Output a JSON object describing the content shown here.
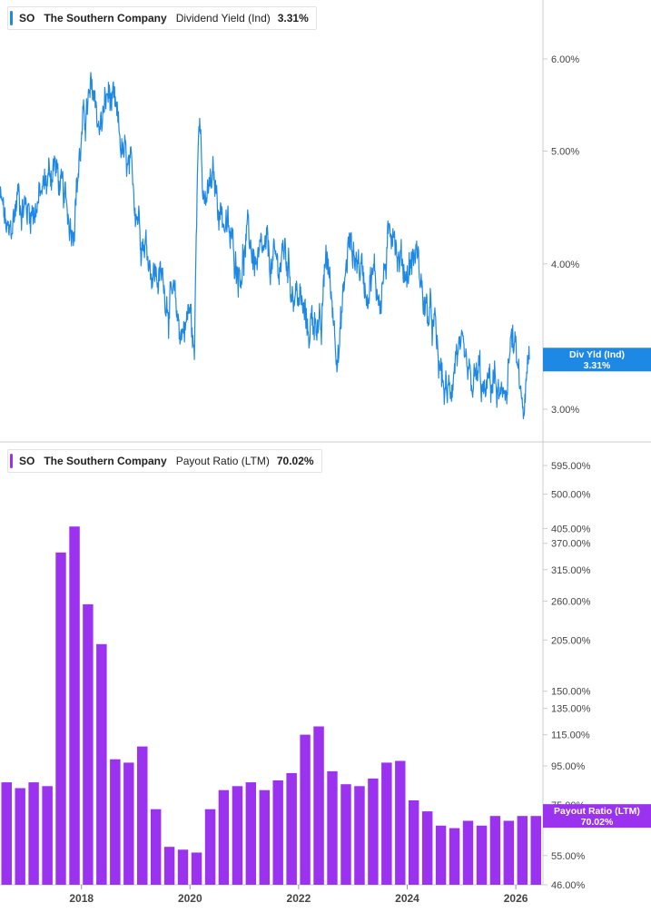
{
  "colors": {
    "yield": "#1e88e5",
    "payout": "#9a32f0",
    "axis": "#cccccc",
    "text": "#555555"
  },
  "top_legend": {
    "ticker": "SO",
    "company": "The Southern Company",
    "metric": "Dividend Yield (Ind)",
    "value": "3.31%"
  },
  "bottom_legend": {
    "ticker": "SO",
    "company": "The Southern Company",
    "metric": "Payout Ratio (LTM)",
    "value": "70.02%"
  },
  "chart_data": [
    {
      "type": "line",
      "series": [
        {
          "name": "Dividend Yield (Ind)"
        }
      ],
      "x_range": [
        "2016-07",
        "2026-07"
      ],
      "y_scale": "log",
      "y_ticks": [
        "6.00%",
        "5.00%",
        "4.00%",
        "3.00%"
      ],
      "y_tick_values": [
        6.0,
        5.0,
        4.0,
        3.0
      ],
      "anchors": [
        [
          "2016-07",
          4.55
        ],
        [
          "2016-09",
          4.15
        ],
        [
          "2016-11",
          4.6
        ],
        [
          "2017-01",
          4.45
        ],
        [
          "2017-04",
          4.55
        ],
        [
          "2017-07",
          4.9
        ],
        [
          "2017-09",
          4.5
        ],
        [
          "2017-11",
          4.35
        ],
        [
          "2018-01",
          5.1
        ],
        [
          "2018-02",
          5.4
        ],
        [
          "2018-04",
          5.6
        ],
        [
          "2018-05",
          5.2
        ],
        [
          "2018-07",
          5.6
        ],
        [
          "2018-09",
          5.2
        ],
        [
          "2018-11",
          4.8
        ],
        [
          "2019-01",
          4.55
        ],
        [
          "2019-03",
          4.2
        ],
        [
          "2019-05",
          3.95
        ],
        [
          "2019-07",
          3.85
        ],
        [
          "2019-09",
          3.7
        ],
        [
          "2019-11",
          3.5
        ],
        [
          "2020-01",
          3.65
        ],
        [
          "2020-02",
          3.3
        ],
        [
          "2020-03",
          5.75
        ],
        [
          "2020-04",
          4.4
        ],
        [
          "2020-06",
          4.7
        ],
        [
          "2020-08",
          4.45
        ],
        [
          "2020-10",
          4.15
        ],
        [
          "2020-12",
          4.0
        ],
        [
          "2021-02",
          4.2
        ],
        [
          "2021-04",
          3.95
        ],
        [
          "2021-06",
          4.05
        ],
        [
          "2021-08",
          3.95
        ],
        [
          "2021-10",
          4.1
        ],
        [
          "2021-12",
          3.8
        ],
        [
          "2022-01",
          3.75
        ],
        [
          "2022-03",
          3.5
        ],
        [
          "2022-05",
          3.65
        ],
        [
          "2022-06",
          3.4
        ],
        [
          "2022-07",
          4.1
        ],
        [
          "2022-09",
          3.55
        ],
        [
          "2022-10",
          3.4
        ],
        [
          "2022-12",
          4.15
        ],
        [
          "2023-02",
          4.05
        ],
        [
          "2023-04",
          3.85
        ],
        [
          "2023-05",
          3.95
        ],
        [
          "2023-07",
          3.75
        ],
        [
          "2023-09",
          4.15
        ],
        [
          "2023-10",
          4.45
        ],
        [
          "2023-11",
          4.05
        ],
        [
          "2024-01",
          3.95
        ],
        [
          "2024-03",
          4.1
        ],
        [
          "2024-05",
          3.65
        ],
        [
          "2024-07",
          3.5
        ],
        [
          "2024-08",
          3.25
        ],
        [
          "2024-10",
          3.05
        ],
        [
          "2024-12",
          3.4
        ],
        [
          "2025-01",
          3.25
        ],
        [
          "2025-03",
          3.1
        ],
        [
          "2025-05",
          3.2
        ],
        [
          "2025-06",
          3.05
        ],
        [
          "2025-08",
          3.2
        ],
        [
          "2025-09",
          3.1
        ],
        [
          "2025-10",
          2.95
        ],
        [
          "2025-12",
          3.45
        ],
        [
          "2026-01",
          3.3
        ],
        [
          "2026-02",
          3.05
        ],
        [
          "2026-03",
          3.0
        ],
        [
          "2026-04",
          3.31
        ]
      ],
      "last_label": "Div Yld (Ind)",
      "last_value": "3.31%",
      "last_numeric": 3.31
    },
    {
      "type": "bar",
      "series": [
        {
          "name": "Payout Ratio (LTM)"
        }
      ],
      "x_range": [
        "2016-07",
        "2026-07"
      ],
      "x_ticks": [
        "2018",
        "2020",
        "2022",
        "2024",
        "2026"
      ],
      "y_scale": "log",
      "y_ticks": [
        "595.00%",
        "500.00%",
        "405.00%",
        "370.00%",
        "315.00%",
        "260.00%",
        "205.00%",
        "150.00%",
        "135.00%",
        "115.00%",
        "95.00%",
        "75.00%",
        "55.00%",
        "46.00%"
      ],
      "y_tick_values": [
        595,
        500,
        405,
        370,
        315,
        260,
        205,
        150,
        135,
        115,
        95,
        75,
        55,
        46
      ],
      "categories": [
        "2016Q3",
        "2016Q4",
        "2017Q1",
        "2017Q2",
        "2017Q3",
        "2017Q4",
        "2018Q1",
        "2018Q2",
        "2018Q3",
        "2018Q4",
        "2019Q1",
        "2019Q2",
        "2019Q3",
        "2019Q4",
        "2020Q1",
        "2020Q2",
        "2020Q3",
        "2020Q4",
        "2021Q1",
        "2021Q2",
        "2021Q3",
        "2021Q4",
        "2022Q1",
        "2022Q2",
        "2022Q3",
        "2022Q4",
        "2023Q1",
        "2023Q2",
        "2023Q3",
        "2023Q4",
        "2024Q1",
        "2024Q2",
        "2024Q3",
        "2024Q4",
        "2025Q1",
        "2025Q2",
        "2025Q3",
        "2025Q4",
        "2026Q1",
        "2026Q2"
      ],
      "values": [
        86,
        83,
        86,
        84,
        350,
        410,
        255,
        200,
        99,
        97,
        107,
        73,
        58,
        57,
        56,
        73,
        82,
        84,
        86,
        82,
        87,
        91,
        115,
        121,
        92,
        85,
        84,
        88,
        97,
        98,
        77,
        72,
        66,
        65,
        68,
        66,
        70,
        68,
        70,
        70.02
      ],
      "last_label": "Payout Ratio (LTM)",
      "last_value": "70.02%",
      "last_numeric": 70.02
    }
  ],
  "icons": {
    "legend_marker": "vertical-color-bar"
  }
}
